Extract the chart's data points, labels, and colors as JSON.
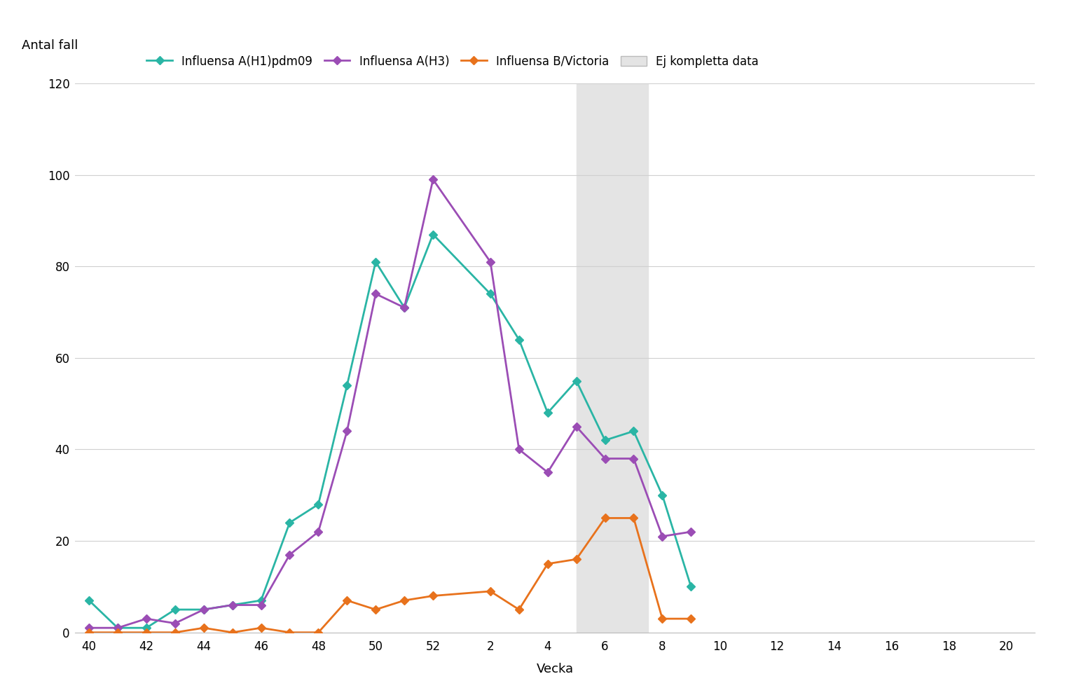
{
  "title": "",
  "ylabel": "Antal fall",
  "xlabel": "Vecka",
  "ylim": [
    0,
    120
  ],
  "yticks": [
    0,
    20,
    40,
    60,
    80,
    100,
    120
  ],
  "xticks_labels": [
    "40",
    "42",
    "44",
    "46",
    "48",
    "50",
    "52",
    "2",
    "4",
    "6",
    "8",
    "10",
    "12",
    "14",
    "16",
    "18",
    "20"
  ],
  "xticks_values": [
    40,
    42,
    44,
    46,
    48,
    50,
    52,
    54,
    56,
    58,
    60,
    62,
    64,
    66,
    68,
    70,
    72
  ],
  "shade_xmin": 57,
  "shade_xmax": 59.5,
  "series": [
    {
      "name": "Influensa A(H1)pdm09",
      "color": "#2ab5a5",
      "marker": "D",
      "x": [
        40,
        41,
        42,
        43,
        44,
        45,
        46,
        47,
        48,
        49,
        50,
        51,
        52,
        54,
        55,
        56,
        57,
        58,
        59,
        60,
        61
      ],
      "y": [
        7,
        1,
        1,
        5,
        5,
        6,
        7,
        24,
        28,
        54,
        81,
        71,
        87,
        74,
        64,
        48,
        55,
        42,
        44,
        30,
        10
      ]
    },
    {
      "name": "Influensa A(H3)",
      "color": "#9b4db5",
      "marker": "D",
      "x": [
        40,
        41,
        42,
        43,
        44,
        45,
        46,
        47,
        48,
        49,
        50,
        51,
        52,
        54,
        55,
        56,
        57,
        58,
        59,
        60,
        61
      ],
      "y": [
        1,
        1,
        3,
        2,
        5,
        6,
        6,
        17,
        22,
        44,
        74,
        71,
        99,
        81,
        40,
        35,
        45,
        38,
        38,
        21,
        22
      ]
    },
    {
      "name": "Influensa B/Victoria",
      "color": "#e8721c",
      "marker": "D",
      "x": [
        40,
        41,
        42,
        43,
        44,
        45,
        46,
        47,
        48,
        49,
        50,
        51,
        52,
        54,
        55,
        56,
        57,
        58,
        59,
        60,
        61
      ],
      "y": [
        0,
        0,
        0,
        0,
        1,
        0,
        1,
        0,
        0,
        7,
        5,
        7,
        8,
        9,
        5,
        15,
        16,
        25,
        25,
        3,
        3
      ]
    }
  ],
  "background_color": "#ffffff",
  "grid_color": "#d0d0d0",
  "shade_color": "#e4e4e4",
  "legend_shade_label": "Ej kompletta data"
}
